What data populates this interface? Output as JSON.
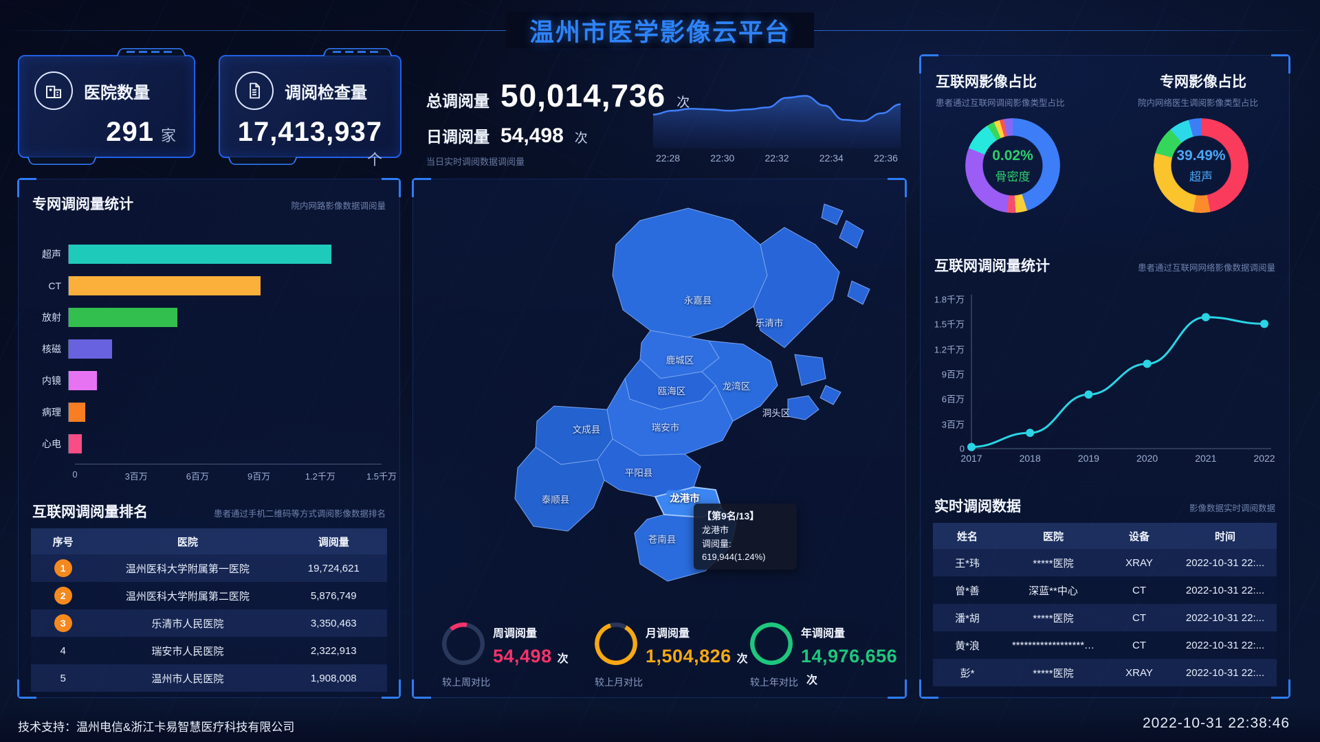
{
  "header": {
    "title": "温州市医学影像云平台"
  },
  "stat_cards": [
    {
      "icon": "hospital-icon",
      "label": "医院数量",
      "value": "291",
      "unit": "家"
    },
    {
      "icon": "document-icon",
      "label": "调阅检查量",
      "value": "17,413,937",
      "unit": "个"
    }
  ],
  "totals": {
    "total_label": "总调阅量",
    "total_value": "50,014,736",
    "total_unit": "次",
    "daily_label": "日调阅量",
    "daily_value": "54,498",
    "daily_unit": "次",
    "daily_note": "当日实时调阅数据调阅量"
  },
  "chart_data": [
    {
      "id": "realtime_trend",
      "type": "area",
      "title": "",
      "x": [
        "22:28",
        "22:30",
        "22:32",
        "22:34",
        "22:36"
      ],
      "values": [
        46,
        52,
        55,
        54,
        52,
        54,
        57,
        72,
        75,
        60,
        38,
        36,
        48,
        62
      ],
      "color": "#3f7ef8",
      "note": "unlabeled y axis, relative magnitudes"
    },
    {
      "id": "internet_image_share",
      "type": "pie",
      "title": "互联网影像占比",
      "subtitle": "患者通过互联网调阅影像类型占比",
      "center": {
        "percent": "0.02%",
        "label": "骨密度",
        "color": "#2ecf6b"
      },
      "segments": [
        {
          "color": "#3d7ef8",
          "value": 45
        },
        {
          "color": "#f7cf38",
          "value": 4
        },
        {
          "color": "#f54d6e",
          "value": 3
        },
        {
          "color": "#9b5df5",
          "value": 29
        },
        {
          "color": "#27e8de",
          "value": 10
        },
        {
          "color": "#3ad65c",
          "value": 2.5
        },
        {
          "color": "#ffd53d",
          "value": 2
        },
        {
          "color": "#fa5252",
          "value": 1.5
        },
        {
          "color": "#8468f5",
          "value": 3
        }
      ]
    },
    {
      "id": "private_image_share",
      "type": "pie",
      "title": "专网影像占比",
      "subtitle": "院内网络医生调阅影像类型占比",
      "center": {
        "percent": "39.49%",
        "label": "超声",
        "color": "#4aa7f5"
      },
      "segments": [
        {
          "color": "#fb3b5c",
          "value": 44
        },
        {
          "color": "#fb8c2c",
          "value": 5.5
        },
        {
          "color": "#fbc32c",
          "value": 25
        },
        {
          "color": "#35d65c",
          "value": 9
        },
        {
          "color": "#2cd9e8",
          "value": 6.5
        },
        {
          "color": "#3d7ef8",
          "value": 4
        }
      ]
    },
    {
      "id": "private_net_stats",
      "type": "bar",
      "title": "专网调阅量统计",
      "subtitle": "院内网路影像数据调阅量",
      "categories": [
        "超声",
        "CT",
        "放射",
        "核磁",
        "内镜",
        "病理",
        "心电"
      ],
      "values": [
        12600000,
        9200000,
        5200000,
        2070000,
        1340000,
        800000,
        630000
      ],
      "colors": [
        "#1ecbbb",
        "#fbb03b",
        "#33bf4e",
        "#6862e0",
        "#e873f2",
        "#f97e23",
        "#fb4d85"
      ],
      "xticks": [
        "0",
        "3百万",
        "6百万",
        "9百万",
        "1.2千万",
        "1.5千万"
      ],
      "xmax": 15000000
    },
    {
      "id": "internet_stats",
      "type": "line",
      "title": "互联网调阅量统计",
      "subtitle": "患者通过互联网网络影像数据调阅量",
      "x": [
        "2017",
        "2018",
        "2019",
        "2020",
        "2021",
        "2022"
      ],
      "values": [
        200000,
        1900000,
        6500000,
        10200000,
        15800000,
        15000000
      ],
      "yticks": [
        "0",
        "3百万",
        "6百万",
        "9百万",
        "1.2千万",
        "1.5千万",
        "1.8千万"
      ],
      "ymax": 18000000,
      "color": "#2ad4e4"
    }
  ],
  "ranking_table": {
    "title": "互联网调阅量排名",
    "subtitle": "患者通过手机二维码等方式调阅影像数据排名",
    "headers": [
      "序号",
      "医院",
      "调阅量"
    ],
    "badge_color": "#f6891e",
    "rows": [
      {
        "rank": "1",
        "hospital": "温州医科大学附属第一医院",
        "count": "19,724,621"
      },
      {
        "rank": "2",
        "hospital": "温州医科大学附属第二医院",
        "count": "5,876,749"
      },
      {
        "rank": "3",
        "hospital": "乐清市人民医院",
        "count": "3,350,463"
      },
      {
        "rank": "4",
        "hospital": "瑞安市人民医院",
        "count": "2,322,913"
      },
      {
        "rank": "5",
        "hospital": "温州市人民医院",
        "count": "1,908,008"
      }
    ]
  },
  "map": {
    "districts": [
      {
        "name": "永嘉县"
      },
      {
        "name": "乐清市"
      },
      {
        "name": "鹿城区"
      },
      {
        "name": "瓯海区"
      },
      {
        "name": "龙湾区"
      },
      {
        "name": "洞头区"
      },
      {
        "name": "文成县"
      },
      {
        "name": "瑞安市"
      },
      {
        "name": "平阳县"
      },
      {
        "name": "泰顺县"
      },
      {
        "name": "苍南县"
      },
      {
        "name": "龙港市",
        "highlight": true
      }
    ],
    "tooltip": {
      "rank": "【第9名/13】",
      "name": "龙港市",
      "value": "调阅量: 619,944(1.24%)"
    }
  },
  "gauges": [
    {
      "letter": "周",
      "label": "周调阅量",
      "value": "54,498",
      "unit": "次",
      "compare": "较上周对比",
      "color": "#f5336b",
      "percent": 14
    },
    {
      "letter": "月",
      "label": "月调阅量",
      "value": "1,504,826",
      "unit": "次",
      "compare": "较上月对比",
      "color": "#f7a812",
      "percent": 87
    },
    {
      "letter": "年",
      "label": "年调阅量",
      "value": "14,976,656",
      "unit": "次",
      "compare": "较上年对比",
      "color": "#1ec77d",
      "percent": 100
    }
  ],
  "realtime_table": {
    "title": "实时调阅数据",
    "subtitle": "影像数据实时调阅数据",
    "headers": [
      "姓名",
      "医院",
      "设备",
      "时间"
    ],
    "rows": [
      {
        "name": "王*玮",
        "hospital": "*****医院",
        "device": "XRAY",
        "time": "2022-10-31 22:..."
      },
      {
        "name": "曾*善",
        "hospital": "深蓝**中心",
        "device": "CT",
        "time": "2022-10-31 22:..."
      },
      {
        "name": "潘*胡",
        "hospital": "*****医院",
        "device": "CT",
        "time": "2022-10-31 22:..."
      },
      {
        "name": "黄*浪",
        "hospital": "******************…",
        "device": "CT",
        "time": "2022-10-31 22:..."
      },
      {
        "name": "彭*",
        "hospital": "*****医院",
        "device": "XRAY",
        "time": "2022-10-31 22:..."
      }
    ]
  },
  "footer": {
    "support": "技术支持：温州电信&浙江卡易智慧医疗科技有限公司",
    "datetime": "2022-10-31 22:38:46"
  }
}
